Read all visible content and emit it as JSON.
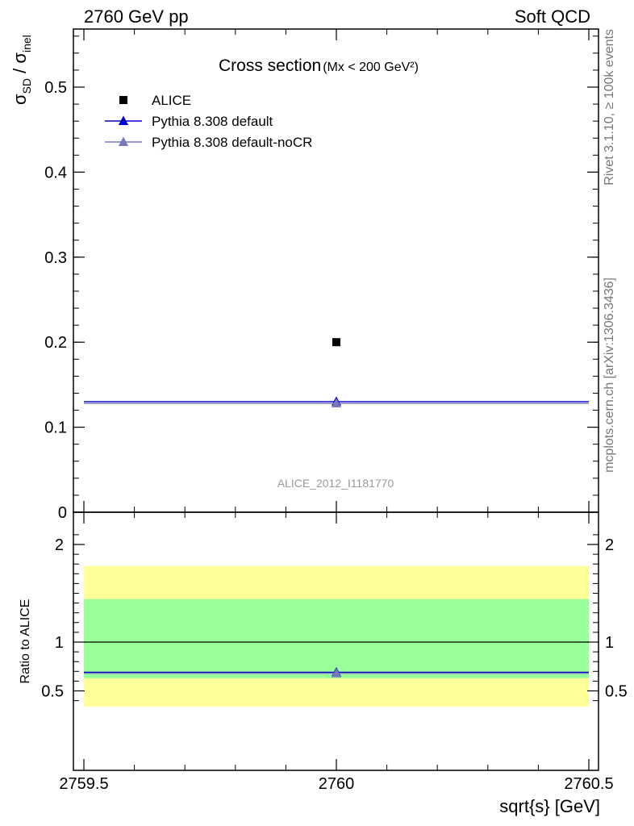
{
  "header": {
    "left": "2760 GeV pp",
    "right": "Soft QCD"
  },
  "side_labels": {
    "rivet": "Rivet 3.1.10, ≥ 100k events",
    "mcplots": "mcplots.cern.ch [arXiv:1306.3436]"
  },
  "chart_data": [
    {
      "type": "scatter",
      "title": "Cross section",
      "title_suffix": "(Mx < 200 GeV²)",
      "ylabel": "σSD / σinel",
      "analysis_label": "ALICE_2012_I1181770",
      "xlim": [
        2759.5,
        2760.5
      ],
      "ylim": [
        0,
        0.57
      ],
      "yticks": [
        0,
        0.1,
        0.2,
        0.3,
        0.4,
        0.5
      ],
      "ytick_labels": [
        "0",
        "0.1",
        "0.2",
        "0.3",
        "0.4",
        "0.5"
      ],
      "legend_placement": "top-left",
      "series": [
        {
          "name": "ALICE",
          "marker": "square",
          "color": "#000000",
          "x": [
            2760
          ],
          "y": [
            0.2
          ]
        },
        {
          "name": "Pythia 8.308 default",
          "marker": "triangle",
          "color": "#0000cc",
          "x": [
            2760
          ],
          "y": [
            0.13
          ],
          "xrange": [
            2759.5,
            2760.5
          ]
        },
        {
          "name": "Pythia 8.308 default-noCR",
          "marker": "triangle",
          "color": "#7777bb",
          "x": [
            2760
          ],
          "y": [
            0.128
          ],
          "xrange": [
            2759.5,
            2760.5
          ]
        }
      ]
    },
    {
      "type": "line",
      "ylabel": "Ratio to ALICE",
      "xlabel": "sqrt{s} [GeV]",
      "xlim": [
        2759.5,
        2760.5
      ],
      "xticks": [
        2759.5,
        2760,
        2760.5
      ],
      "xtick_labels": [
        "2759.5",
        "2760",
        "2760.5"
      ],
      "ylim": [
        0.34,
        2.25
      ],
      "yticks": [
        0.5,
        1,
        2
      ],
      "ytick_labels": [
        "0.5",
        "1",
        "2"
      ],
      "bands": [
        {
          "color": "#ffff99",
          "low": 0.34,
          "high": 1.78
        },
        {
          "color": "#99ff99",
          "low": 0.63,
          "high": 1.44
        }
      ],
      "reference": 1,
      "series": [
        {
          "name": "Pythia 8.308 default",
          "color": "#0000cc",
          "x": [
            2760
          ],
          "y": [
            0.69
          ],
          "xrange": [
            2759.5,
            2760.5
          ]
        },
        {
          "name": "Pythia 8.308 default-noCR",
          "color": "#7777bb",
          "x": [
            2760
          ],
          "y": [
            0.68
          ],
          "xrange": [
            2759.5,
            2760.5
          ]
        }
      ]
    }
  ]
}
